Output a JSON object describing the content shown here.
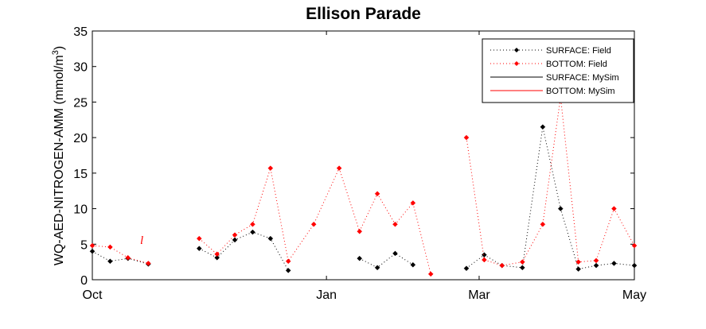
{
  "chart_data": {
    "type": "line",
    "title": "Ellison Parade",
    "ylabel": "WQ-AED-NITROGEN-AMM (mmol/m",
    "ylabel_superscript": "3",
    "ylabel_close": ")",
    "xlabel": "",
    "ylim": [
      0,
      35
    ],
    "xlim": [
      "2023-10-01",
      "2024-05-01"
    ],
    "yticks": [
      0,
      5,
      10,
      15,
      20,
      25,
      30,
      35
    ],
    "xticks": [
      {
        "value": "2023-10-01",
        "label": "Oct"
      },
      {
        "value": "2024-01-01",
        "label": "Jan"
      },
      {
        "value": "2024-03-01",
        "label": "Mar"
      },
      {
        "value": "2024-05-01",
        "label": "May"
      }
    ],
    "grid": false,
    "legend_position": "top-right",
    "annotation": "l",
    "series": [
      {
        "name": "SURFACE: Field",
        "color": "#000000",
        "style": "dotted-marker",
        "points": [
          [
            "2023-10-01",
            4.0
          ],
          [
            "2023-10-08",
            2.6
          ],
          [
            "2023-10-15",
            3.0
          ],
          [
            "2023-10-23",
            2.2
          ],
          null,
          [
            "2023-11-12",
            4.4
          ],
          [
            "2023-11-19",
            3.1
          ],
          [
            "2023-11-26",
            5.6
          ],
          [
            "2023-12-03",
            6.7
          ],
          [
            "2023-12-10",
            5.8
          ],
          [
            "2023-12-17",
            1.3
          ],
          null,
          [
            "2024-01-14",
            3.0
          ],
          [
            "2024-01-21",
            1.7
          ],
          [
            "2024-01-28",
            3.7
          ],
          [
            "2024-02-04",
            2.1
          ],
          null,
          [
            "2024-02-25",
            1.6
          ],
          [
            "2024-03-03",
            3.5
          ],
          [
            "2024-03-10",
            2.0
          ],
          [
            "2024-03-18",
            1.7
          ],
          [
            "2024-03-26",
            21.5
          ],
          [
            "2024-04-02",
            10.0
          ],
          [
            "2024-04-09",
            1.5
          ],
          [
            "2024-04-16",
            2.0
          ],
          [
            "2024-04-23",
            2.3
          ],
          [
            "2024-05-01",
            2.0
          ]
        ]
      },
      {
        "name": "BOTTOM: Field",
        "color": "#ff0000",
        "style": "dotted-marker",
        "points": [
          [
            "2023-10-01",
            4.8
          ],
          [
            "2023-10-08",
            4.6
          ],
          [
            "2023-10-15",
            3.1
          ],
          [
            "2023-10-23",
            2.3
          ],
          null,
          [
            "2023-11-12",
            5.8
          ],
          [
            "2023-11-19",
            3.6
          ],
          [
            "2023-11-26",
            6.3
          ],
          [
            "2023-12-03",
            7.8
          ],
          [
            "2023-12-10",
            15.7
          ],
          [
            "2023-12-17",
            2.6
          ],
          [
            "2023-12-27",
            7.8
          ],
          [
            "2024-01-06",
            15.7
          ],
          [
            "2024-01-14",
            6.8
          ],
          [
            "2024-01-21",
            12.1
          ],
          [
            "2024-01-28",
            7.8
          ],
          [
            "2024-02-04",
            10.8
          ],
          [
            "2024-02-11",
            0.8
          ],
          null,
          [
            "2024-02-25",
            20.0
          ],
          [
            "2024-03-03",
            2.8
          ],
          [
            "2024-03-10",
            2.0
          ],
          [
            "2024-03-18",
            2.5
          ],
          [
            "2024-03-26",
            7.8
          ],
          [
            "2024-04-02",
            25.7
          ],
          [
            "2024-04-09",
            2.5
          ],
          [
            "2024-04-16",
            2.7
          ],
          [
            "2024-04-23",
            10.0
          ],
          [
            "2024-05-01",
            4.8
          ]
        ]
      },
      {
        "name": "SURFACE: MySim",
        "color": "#000000",
        "style": "solid",
        "points": []
      },
      {
        "name": "BOTTOM: MySim",
        "color": "#ff0000",
        "style": "solid",
        "points": []
      }
    ]
  }
}
